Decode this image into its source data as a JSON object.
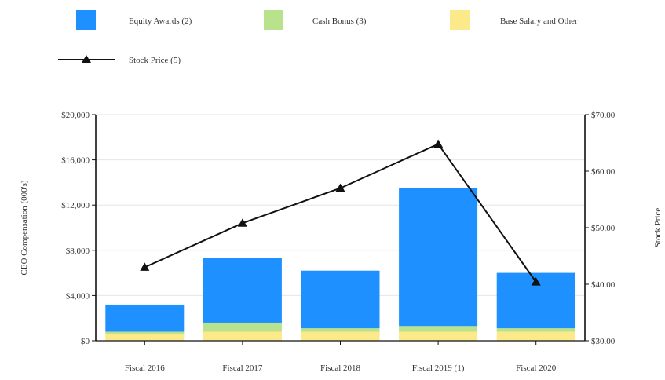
{
  "chart_data": {
    "type": "bar",
    "stacked": true,
    "categories": [
      "Fiscal 2016",
      "Fiscal 2017",
      "Fiscal 2018",
      "Fiscal 2019 (1)",
      "Fiscal 2020"
    ],
    "series": [
      {
        "name": "Base Salary and Other",
        "color": "#fbe98a",
        "values": [
          600,
          800,
          800,
          800,
          800
        ]
      },
      {
        "name": "Cash Bonus (3)",
        "color": "#b9e28c",
        "values": [
          200,
          800,
          300,
          500,
          300
        ]
      },
      {
        "name": "Equity Awards (2)",
        "color": "#1e90ff",
        "values": [
          2400,
          5700,
          5100,
          12200,
          4900
        ]
      }
    ],
    "line_series": {
      "name": "Stock Price (5)",
      "color": "#111111",
      "marker": "triangle",
      "axis": "right",
      "values": [
        43.0,
        50.8,
        57.0,
        64.8,
        40.4
      ]
    },
    "legend_order": [
      "Equity Awards (2)",
      "Cash Bonus (3)",
      "Base Salary and Other",
      "Stock Price (5)"
    ],
    "ylabel": "CEO Compensation (000's)",
    "ylabel_right": "Stock Price",
    "ylim": [
      0,
      20000
    ],
    "ylim_right": [
      30,
      70
    ],
    "yticks": [
      "$0",
      "$4,000",
      "$8,000",
      "$12,000",
      "$16,000",
      "$20,000"
    ],
    "yticks_right": [
      "$30.00",
      "$40.00",
      "$50.00",
      "$60.00",
      "$70.00"
    ],
    "grid": true,
    "legend_position": "top"
  }
}
